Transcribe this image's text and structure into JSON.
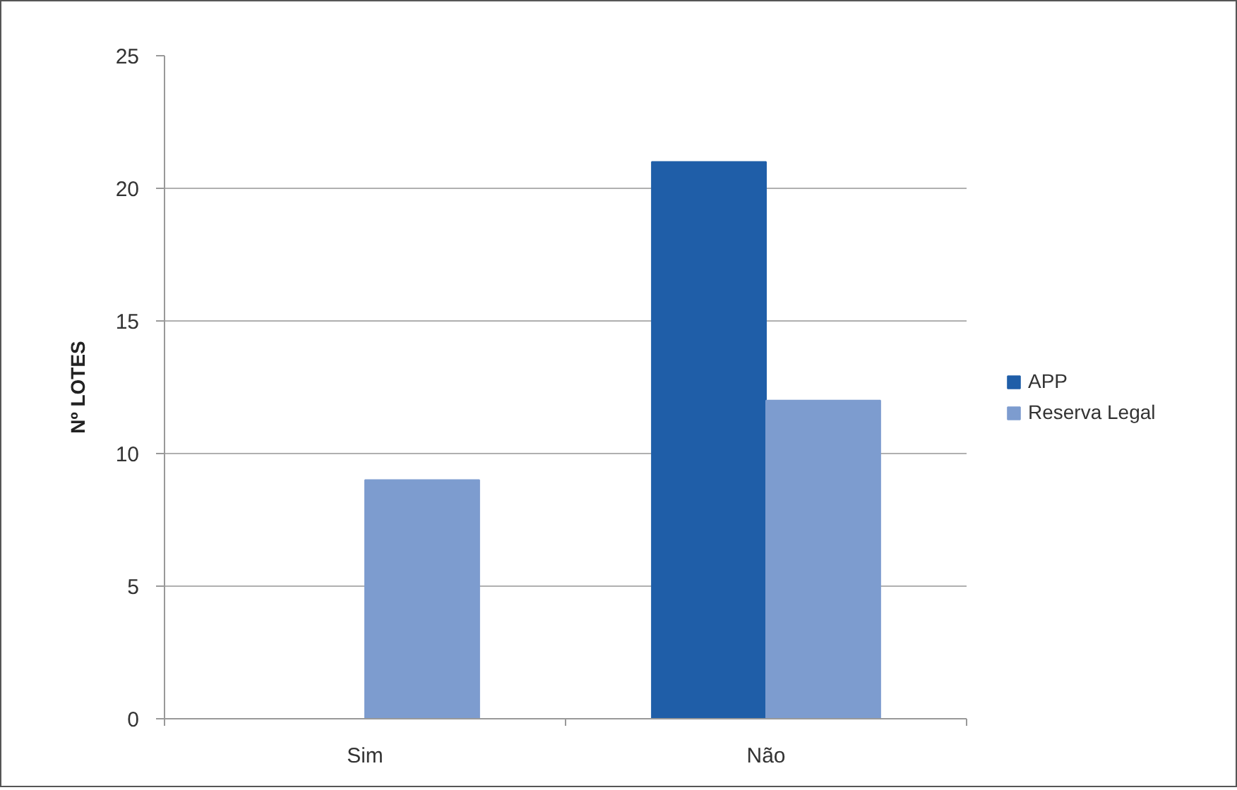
{
  "chart_data": {
    "type": "bar",
    "ylabel": "Nº LOTES",
    "categories": [
      "Sim",
      "Não"
    ],
    "series": [
      {
        "name": "APP",
        "color": "#1f5ea8",
        "values": [
          0,
          21
        ]
      },
      {
        "name": "Reserva Legal",
        "color": "#7d9ccf",
        "values": [
          9,
          12
        ]
      }
    ],
    "ylim": [
      0,
      25
    ],
    "yticks": [
      0,
      5,
      10,
      15,
      20,
      25
    ],
    "grid": "y",
    "legend": "right"
  }
}
